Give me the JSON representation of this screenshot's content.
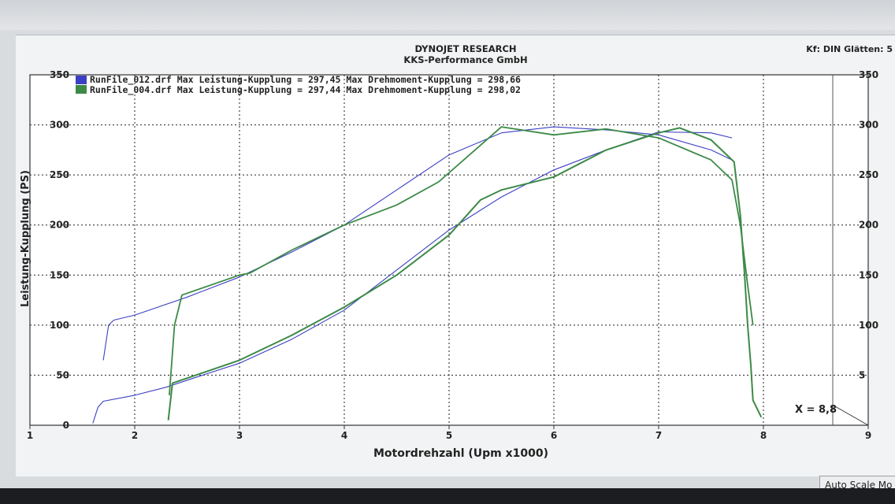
{
  "window": {
    "title_line1": "DYNOJET RESEARCH",
    "title_line2": "KKS-Performance GmbH",
    "correction": "Kf: DIN  Glätten: 5"
  },
  "footer": {
    "cursor_readout": "X = 8,8",
    "autoscale_label": "Auto Scale Mo"
  },
  "colors": {
    "run_012": "#3b3fc4",
    "run_004": "#3c8a46",
    "plot_bg": "#ffffff",
    "grid": "#222222"
  },
  "chart_data": {
    "type": "line",
    "xlabel": "Motordrehzahl (Upm x1000)",
    "ylabel": "Leistung-Kupplung (PS)",
    "xlim": [
      1,
      9
    ],
    "ylim": [
      0,
      350
    ],
    "x_ticks": [
      "1",
      "2",
      "3",
      "4",
      "5",
      "6",
      "7",
      "8",
      "9"
    ],
    "y_ticks_left": [
      "0",
      "50",
      "100",
      "150",
      "200",
      "250",
      "300",
      "350"
    ],
    "y_ticks_right": [
      "350",
      "300",
      "250",
      "200",
      "150",
      "100",
      "5"
    ],
    "grid": true,
    "legend_position": "top-left",
    "legend": [
      "RunFile_012.drf Max Leistung-Kupplung = 297,45 Max Drehmoment-Kupplung = 298,66",
      "RunFile_004.drf Max Leistung-Kupplung = 297,44 Max Drehmoment-Kupplung = 298,02"
    ],
    "series": [
      {
        "name": "RunFile_012.drf Leistung",
        "color": "#3b3fc4",
        "x": [
          1.6,
          1.65,
          1.7,
          2.0,
          2.3,
          2.5,
          3.0,
          3.5,
          4.0,
          4.5,
          5.0,
          5.5,
          6.0,
          6.5,
          7.0,
          7.5,
          7.7
        ],
        "y": [
          2,
          18,
          24,
          30,
          38,
          45,
          62,
          86,
          115,
          155,
          195,
          228,
          255,
          275,
          293,
          292,
          287
        ]
      },
      {
        "name": "RunFile_012.drf Drehmoment",
        "color": "#3b3fc4",
        "x": [
          1.7,
          1.75,
          1.8,
          2.0,
          2.5,
          3.0,
          3.5,
          4.0,
          4.5,
          5.0,
          5.5,
          6.0,
          6.5,
          7.0,
          7.5,
          7.7
        ],
        "y": [
          65,
          100,
          105,
          110,
          128,
          148,
          173,
          200,
          235,
          270,
          292,
          298,
          295,
          290,
          275,
          265
        ]
      },
      {
        "name": "RunFile_004.drf Leistung",
        "color": "#3c8a46",
        "x": [
          2.32,
          2.36,
          2.5,
          3.0,
          3.5,
          4.0,
          4.5,
          5.0,
          5.3,
          5.5,
          6.0,
          6.5,
          7.0,
          7.2,
          7.5,
          7.72,
          7.78,
          7.82,
          7.85,
          7.88,
          7.9,
          7.98
        ],
        "y": [
          5,
          42,
          47,
          65,
          90,
          118,
          150,
          190,
          225,
          235,
          248,
          275,
          292,
          297,
          285,
          263,
          210,
          150,
          100,
          60,
          25,
          8
        ]
      },
      {
        "name": "RunFile_004.drf Drehmoment",
        "color": "#3c8a46",
        "x": [
          2.33,
          2.38,
          2.45,
          3.0,
          3.1,
          3.5,
          4.0,
          4.5,
          4.9,
          5.5,
          6.0,
          6.5,
          7.0,
          7.5,
          7.7,
          7.78,
          7.85,
          7.9
        ],
        "y": [
          30,
          100,
          130,
          150,
          152,
          175,
          200,
          220,
          243,
          298,
          290,
          296,
          287,
          265,
          245,
          200,
          140,
          100
        ]
      }
    ]
  }
}
